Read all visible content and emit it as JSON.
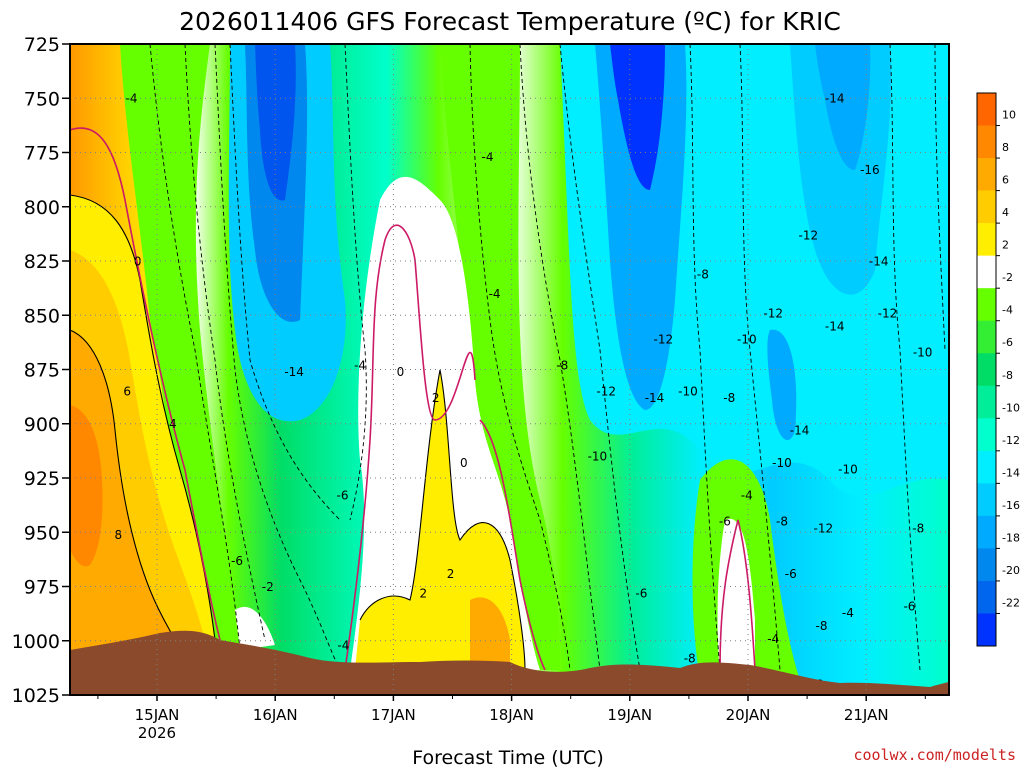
{
  "colors": {
    "ground": "#8b4a2b",
    "zero_isotherm": "#cc1a66",
    "credit": "#cc2222"
  },
  "chart_data": {
    "type": "contour",
    "title": "2026011406 GFS Forecast Temperature (ºC) for KRIC",
    "xlabel": "Forecast Time (UTC)",
    "ylabel": "Pressure (hPa)",
    "credit": "coolwx.com/modelts",
    "y_ticks": [
      "725",
      "750",
      "775",
      "800",
      "825",
      "850",
      "875",
      "900",
      "925",
      "950",
      "975",
      "1000",
      "1025"
    ],
    "x_ticks": [
      {
        "label": "15JAN",
        "sub": "2026"
      },
      {
        "label": "16JAN",
        "sub": ""
      },
      {
        "label": "17JAN",
        "sub": ""
      },
      {
        "label": "18JAN",
        "sub": ""
      },
      {
        "label": "19JAN",
        "sub": ""
      },
      {
        "label": "20JAN",
        "sub": ""
      },
      {
        "label": "21JAN",
        "sub": ""
      }
    ],
    "colorbar_labels": [
      "10",
      "8",
      "6",
      "4",
      "2",
      "-2",
      "-4",
      "-6",
      "-8",
      "-10",
      "-12",
      "-14",
      "-16",
      "-18",
      "-20",
      "-22"
    ],
    "colorbar_colors": [
      "#ff6600",
      "#ff8800",
      "#ffaa00",
      "#ffcc00",
      "#ffee00",
      "#ffffff",
      "#66ff00",
      "#33ee33",
      "#00dd66",
      "#00ee99",
      "#00ffcc",
      "#00eeff",
      "#00ccff",
      "#00aaff",
      "#0088ee",
      "#0066ee",
      "#0033ff"
    ],
    "contour_labels": [
      {
        "t": "-4",
        "x": 0.07,
        "y": 0.09
      },
      {
        "t": "0",
        "x": 0.077,
        "y": 0.34
      },
      {
        "t": "6",
        "x": 0.065,
        "y": 0.54
      },
      {
        "t": "4",
        "x": 0.117,
        "y": 0.59
      },
      {
        "t": "8",
        "x": 0.055,
        "y": 0.76
      },
      {
        "t": "-14",
        "x": 0.255,
        "y": 0.51
      },
      {
        "t": "-4",
        "x": 0.33,
        "y": 0.5
      },
      {
        "t": "0",
        "x": 0.376,
        "y": 0.51
      },
      {
        "t": "2",
        "x": 0.416,
        "y": 0.55
      },
      {
        "t": "0",
        "x": 0.448,
        "y": 0.65
      },
      {
        "t": "-4",
        "x": 0.475,
        "y": 0.18
      },
      {
        "t": "-4",
        "x": 0.483,
        "y": 0.39
      },
      {
        "t": "2",
        "x": 0.433,
        "y": 0.82
      },
      {
        "t": "2",
        "x": 0.402,
        "y": 0.85
      },
      {
        "t": "-6",
        "x": 0.31,
        "y": 0.7
      },
      {
        "t": "-6",
        "x": 0.19,
        "y": 0.8
      },
      {
        "t": "-2",
        "x": 0.225,
        "y": 0.84
      },
      {
        "t": "-4",
        "x": 0.311,
        "y": 0.93
      },
      {
        "t": "-8",
        "x": 0.56,
        "y": 0.5
      },
      {
        "t": "-12",
        "x": 0.61,
        "y": 0.54
      },
      {
        "t": "-14",
        "x": 0.665,
        "y": 0.55
      },
      {
        "t": "-10",
        "x": 0.703,
        "y": 0.54
      },
      {
        "t": "-8",
        "x": 0.75,
        "y": 0.55
      },
      {
        "t": "-10",
        "x": 0.6,
        "y": 0.64
      },
      {
        "t": "-12",
        "x": 0.675,
        "y": 0.46
      },
      {
        "t": "-8",
        "x": 0.72,
        "y": 0.36
      },
      {
        "t": "-10",
        "x": 0.77,
        "y": 0.46
      },
      {
        "t": "-12",
        "x": 0.8,
        "y": 0.42
      },
      {
        "t": "-14",
        "x": 0.83,
        "y": 0.6
      },
      {
        "t": "-10",
        "x": 0.81,
        "y": 0.65
      },
      {
        "t": "-12",
        "x": 0.84,
        "y": 0.3
      },
      {
        "t": "-14",
        "x": 0.87,
        "y": 0.09
      },
      {
        "t": "-16",
        "x": 0.91,
        "y": 0.2
      },
      {
        "t": "-14",
        "x": 0.92,
        "y": 0.34
      },
      {
        "t": "-12",
        "x": 0.93,
        "y": 0.42
      },
      {
        "t": "-10",
        "x": 0.97,
        "y": 0.48
      },
      {
        "t": "-14",
        "x": 0.87,
        "y": 0.44
      },
      {
        "t": "-10",
        "x": 0.885,
        "y": 0.66
      },
      {
        "t": "-12",
        "x": 0.857,
        "y": 0.75
      },
      {
        "t": "-8",
        "x": 0.965,
        "y": 0.75
      },
      {
        "t": "-6",
        "x": 0.955,
        "y": 0.87
      },
      {
        "t": "-4",
        "x": 0.885,
        "y": 0.88
      },
      {
        "t": "-8",
        "x": 0.855,
        "y": 0.9
      },
      {
        "t": "-6",
        "x": 0.82,
        "y": 0.82
      },
      {
        "t": "-8",
        "x": 0.81,
        "y": 0.74
      },
      {
        "t": "-4",
        "x": 0.8,
        "y": 0.92
      },
      {
        "t": "-4",
        "x": 0.77,
        "y": 0.7
      },
      {
        "t": "-6",
        "x": 0.745,
        "y": 0.74
      },
      {
        "t": "-8",
        "x": 0.705,
        "y": 0.95
      },
      {
        "t": "0",
        "x": 0.73,
        "y": 0.97
      },
      {
        "t": "-6",
        "x": 0.85,
        "y": 0.99
      },
      {
        "t": "-6",
        "x": 0.65,
        "y": 0.85
      }
    ]
  }
}
